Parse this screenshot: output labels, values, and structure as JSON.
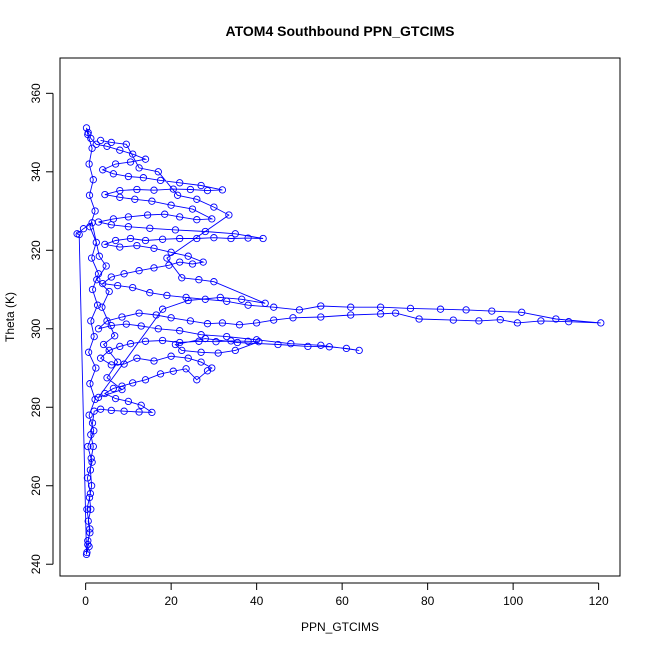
{
  "chart_data": {
    "type": "scatter",
    "title": "ATOM4 Southbound PPN_GTCIMS",
    "xlabel": "PPN_GTCIMS",
    "ylabel": "Theta (K)",
    "xlim": [
      -6,
      125
    ],
    "ylim": [
      237,
      369
    ],
    "xticks": [
      0,
      20,
      40,
      60,
      80,
      100,
      120
    ],
    "yticks": [
      240,
      260,
      280,
      300,
      320,
      340,
      360
    ],
    "xtick_labels": [
      "0",
      "20",
      "40",
      "60",
      "80",
      "100",
      "120"
    ],
    "ytick_labels": [
      "240",
      "260",
      "280",
      "300",
      "320",
      "340",
      "360"
    ],
    "grid": false,
    "marker": "open-circle",
    "line_connected": true,
    "color": "#0000ff",
    "series": [
      {
        "points": [
          [
            0.3,
            243
          ],
          [
            0.8,
            244.5
          ],
          [
            0.5,
            246
          ],
          [
            1.0,
            248
          ],
          [
            0.6,
            251
          ],
          [
            1.2,
            254
          ],
          [
            0.9,
            257
          ],
          [
            1.4,
            260
          ],
          [
            1.1,
            264
          ],
          [
            1.3,
            267
          ],
          [
            1.8,
            270
          ],
          [
            1.2,
            273
          ],
          [
            1.6,
            276
          ],
          [
            2.0,
            279
          ],
          [
            3.5,
            279.5
          ],
          [
            6.0,
            279.2
          ],
          [
            9.0,
            279.0
          ],
          [
            12.5,
            278.8
          ],
          [
            15.5,
            278.7
          ],
          [
            13.0,
            280.5
          ],
          [
            10.0,
            281.5
          ],
          [
            7.0,
            282.2
          ],
          [
            4.5,
            283.5
          ],
          [
            6.5,
            284.8
          ],
          [
            8.5,
            285.4
          ],
          [
            11.0,
            286.2
          ],
          [
            14.0,
            287.0
          ],
          [
            17.5,
            288.5
          ],
          [
            20.5,
            289.2
          ],
          [
            23.5,
            289.8
          ],
          [
            26.0,
            287.0
          ],
          [
            28.5,
            289.3
          ],
          [
            29.5,
            290.0
          ],
          [
            27.0,
            291.5
          ],
          [
            24.0,
            292.5
          ],
          [
            20.0,
            293.0
          ],
          [
            16.0,
            291.8
          ],
          [
            12.0,
            292.5
          ],
          [
            9.0,
            291.0
          ],
          [
            6.0,
            290.8
          ],
          [
            3.5,
            292.5
          ],
          [
            5.5,
            294.5
          ],
          [
            8.0,
            295.5
          ],
          [
            10.5,
            296.2
          ],
          [
            14.0,
            296.8
          ],
          [
            18.0,
            297.0
          ],
          [
            22.0,
            296.5
          ],
          [
            26.5,
            296.8
          ],
          [
            30.5,
            296.7
          ],
          [
            34.0,
            296.9
          ],
          [
            38.0,
            296.8
          ],
          [
            40.5,
            296.7
          ],
          [
            35.0,
            294.5
          ],
          [
            31.0,
            293.8
          ],
          [
            27.0,
            294.0
          ],
          [
            22.5,
            294.5
          ],
          [
            21.0,
            296.0
          ],
          [
            28.0,
            297.5
          ],
          [
            35.5,
            296.5
          ],
          [
            45.0,
            296.0
          ],
          [
            52.0,
            295.5
          ],
          [
            57.0,
            295.4
          ],
          [
            61.0,
            295.0
          ],
          [
            64.0,
            294.5
          ],
          [
            55.0,
            295.8
          ],
          [
            48.0,
            296.2
          ],
          [
            40.0,
            297.2
          ],
          [
            33.0,
            298.0
          ],
          [
            27.0,
            298.5
          ],
          [
            22.0,
            299.5
          ],
          [
            17.0,
            300.0
          ],
          [
            13.0,
            300.7
          ],
          [
            9.5,
            301.2
          ],
          [
            6.0,
            300.8
          ],
          [
            3.0,
            300.0
          ],
          [
            5.0,
            302.0
          ],
          [
            8.5,
            303.0
          ],
          [
            12.5,
            304.0
          ],
          [
            16.5,
            303.5
          ],
          [
            20.0,
            302.8
          ],
          [
            24.5,
            302.0
          ],
          [
            28.5,
            301.3
          ],
          [
            32.0,
            301.5
          ],
          [
            36.0,
            301.0
          ],
          [
            40.0,
            301.5
          ],
          [
            44.0,
            302.2
          ],
          [
            48.5,
            302.8
          ],
          [
            55.0,
            303.0
          ],
          [
            62.0,
            303.5
          ],
          [
            69.0,
            303.8
          ],
          [
            72.5,
            304.0
          ],
          [
            78.0,
            302.5
          ],
          [
            86.0,
            302.2
          ],
          [
            92.0,
            302.0
          ],
          [
            97.0,
            302.3
          ],
          [
            101.0,
            301.5
          ],
          [
            106.5,
            302.0
          ],
          [
            113.0,
            301.8
          ],
          [
            120.5,
            301.5
          ],
          [
            110.0,
            302.5
          ],
          [
            102.0,
            304.2
          ],
          [
            95.0,
            304.5
          ],
          [
            89.0,
            304.8
          ],
          [
            83.0,
            305.0
          ],
          [
            76.0,
            305.2
          ],
          [
            69.0,
            305.5
          ],
          [
            62.0,
            305.5
          ],
          [
            55.0,
            305.8
          ],
          [
            50.0,
            304.8
          ],
          [
            44.0,
            305.5
          ],
          [
            38.0,
            306.0
          ],
          [
            33.0,
            307.0
          ],
          [
            28.0,
            307.5
          ],
          [
            23.5,
            308.0
          ],
          [
            19.0,
            308.5
          ],
          [
            15.0,
            309.2
          ],
          [
            11.0,
            310.5
          ],
          [
            7.5,
            311.0
          ],
          [
            4.0,
            311.5
          ],
          [
            6.0,
            313.2
          ],
          [
            9.0,
            314.0
          ],
          [
            12.5,
            314.8
          ],
          [
            16.0,
            315.5
          ],
          [
            19.5,
            316.2
          ],
          [
            22.0,
            317.0
          ],
          [
            25.0,
            316.5
          ],
          [
            27.5,
            317.0
          ],
          [
            24.0,
            318.5
          ],
          [
            20.0,
            319.5
          ],
          [
            16.0,
            320.5
          ],
          [
            12.0,
            321.2
          ],
          [
            8.0,
            320.8
          ],
          [
            4.5,
            321.5
          ],
          [
            7.0,
            322.5
          ],
          [
            10.5,
            323.0
          ],
          [
            14.0,
            322.5
          ],
          [
            18.0,
            322.8
          ],
          [
            22.0,
            323.0
          ],
          [
            26.0,
            323.0
          ],
          [
            30.0,
            323.2
          ],
          [
            34.0,
            323.0
          ],
          [
            38.0,
            323.1
          ],
          [
            41.5,
            323.0
          ],
          [
            35.0,
            324.2
          ],
          [
            28.0,
            324.8
          ],
          [
            21.0,
            325.2
          ],
          [
            15.0,
            325.6
          ],
          [
            10.0,
            326.0
          ],
          [
            6.0,
            326.5
          ],
          [
            3.0,
            327.2
          ],
          [
            6.5,
            328.0
          ],
          [
            10.0,
            328.5
          ],
          [
            14.5,
            329.0
          ],
          [
            18.5,
            329.2
          ],
          [
            22.0,
            328.5
          ],
          [
            26.0,
            327.8
          ],
          [
            29.5,
            328.0
          ],
          [
            25.0,
            330.5
          ],
          [
            20.0,
            331.5
          ],
          [
            15.5,
            332.5
          ],
          [
            11.5,
            333.0
          ],
          [
            8.0,
            333.5
          ],
          [
            4.5,
            334.2
          ],
          [
            8.0,
            335.2
          ],
          [
            12.0,
            335.5
          ],
          [
            16.0,
            335.3
          ],
          [
            20.5,
            335.6
          ],
          [
            24.5,
            335.5
          ],
          [
            28.5,
            335.2
          ],
          [
            32.0,
            335.4
          ],
          [
            27.0,
            336.5
          ],
          [
            22.0,
            337.2
          ],
          [
            17.5,
            337.8
          ],
          [
            13.5,
            338.5
          ],
          [
            10.0,
            338.8
          ],
          [
            6.5,
            339.5
          ],
          [
            4.0,
            340.5
          ],
          [
            7.0,
            342.0
          ],
          [
            10.5,
            342.5
          ],
          [
            14.0,
            343.2
          ],
          [
            11.0,
            344.5
          ],
          [
            8.0,
            345.5
          ],
          [
            5.0,
            346.5
          ],
          [
            2.5,
            347.0
          ],
          [
            1.2,
            348.5
          ],
          [
            0.6,
            350.0
          ],
          [
            0.2,
            351.2
          ],
          [
            0.5,
            349.5
          ],
          [
            1.5,
            346.0
          ],
          [
            0.8,
            342.0
          ],
          [
            1.8,
            338.0
          ],
          [
            0.9,
            334.0
          ],
          [
            2.2,
            330.0
          ],
          [
            1.0,
            326.0
          ],
          [
            2.5,
            322.0
          ],
          [
            1.4,
            318.0
          ],
          [
            3.0,
            314.0
          ],
          [
            1.6,
            310.0
          ],
          [
            2.8,
            306.0
          ],
          [
            1.2,
            302.0
          ],
          [
            2.0,
            298.0
          ],
          [
            0.7,
            294.0
          ],
          [
            2.4,
            290.0
          ],
          [
            1.0,
            286.0
          ],
          [
            2.2,
            282.0
          ],
          [
            0.8,
            278.0
          ],
          [
            1.9,
            274.0
          ],
          [
            0.5,
            270.0
          ],
          [
            1.5,
            266.0
          ],
          [
            0.4,
            262.0
          ],
          [
            1.1,
            258.0
          ],
          [
            0.3,
            254.0
          ],
          [
            1.0,
            249.0
          ],
          [
            0.5,
            245.0
          ],
          [
            0.2,
            242.5
          ],
          [
            -1.5,
            324.0
          ],
          [
            -2.0,
            324.2
          ],
          [
            -0.5,
            325.5
          ],
          [
            1.5,
            327.0
          ],
          [
            3.2,
            318.5
          ],
          [
            4.8,
            316.0
          ],
          [
            2.6,
            312.5
          ],
          [
            5.5,
            309.5
          ],
          [
            3.8,
            305.5
          ],
          [
            6.8,
            298.2
          ],
          [
            4.2,
            296.0
          ],
          [
            7.5,
            291.5
          ],
          [
            5.0,
            287.5
          ],
          [
            8.5,
            284.5
          ],
          [
            3.0,
            282.5
          ],
          [
            18.0,
            305.0
          ],
          [
            24.0,
            307.2
          ],
          [
            31.5,
            308.0
          ],
          [
            36.5,
            307.5
          ],
          [
            42.0,
            306.5
          ],
          [
            30.0,
            312.0
          ],
          [
            26.5,
            312.5
          ],
          [
            22.5,
            313.0
          ],
          [
            19.0,
            318.0
          ],
          [
            33.5,
            329.0
          ],
          [
            30.0,
            331.0
          ],
          [
            26.0,
            333.0
          ],
          [
            21.5,
            334.0
          ],
          [
            17.0,
            340.0
          ],
          [
            12.5,
            341.0
          ],
          [
            9.5,
            347.0
          ],
          [
            6.0,
            347.5
          ],
          [
            3.5,
            348.0
          ]
        ]
      }
    ]
  }
}
